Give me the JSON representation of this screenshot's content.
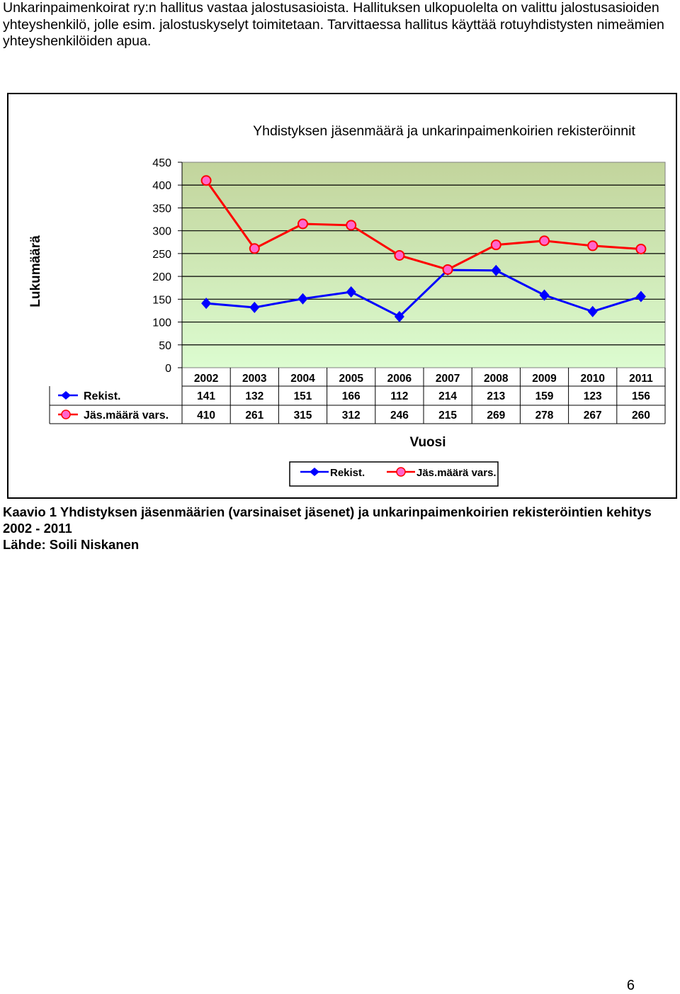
{
  "intro_text": "Unkarinpaimenkoirat ry:n hallitus vastaa jalostusasioista. Hallituksen ulkopuolelta on valittu jalostusasioiden yhteyshenkilö, jolle esim. jalostuskyselyt toimitetaan. Tarvittaessa hallitus käyttää rotuyhdistysten nimeämien yhteyshenkilöiden apua.",
  "chart_data": {
    "type": "line",
    "title": "Yhdistyksen jäsenmäärä ja unkarinpaimenkoirien rekisteröinnit",
    "xlabel": "Vuosi",
    "ylabel": "Lukumäärä",
    "categories": [
      "2002",
      "2003",
      "2004",
      "2005",
      "2006",
      "2007",
      "2008",
      "2009",
      "2010",
      "2011"
    ],
    "y_ticks": [
      "0",
      "50",
      "100",
      "150",
      "200",
      "250",
      "300",
      "350",
      "400",
      "450"
    ],
    "ylim": [
      0,
      450
    ],
    "grid": "horizontal",
    "legend_position": "bottom",
    "data_table": true,
    "series": [
      {
        "name": "Rekist.",
        "values": [
          141,
          132,
          151,
          166,
          112,
          214,
          213,
          159,
          123,
          156
        ],
        "color": "#0000ff",
        "marker": "diamond"
      },
      {
        "name": "Jäs.määrä vars.",
        "values": [
          410,
          261,
          315,
          312,
          246,
          215,
          269,
          278,
          267,
          260
        ],
        "color": "#ff0000",
        "marker": "circle",
        "marker_fill": "#ff66cc"
      }
    ]
  },
  "caption": {
    "text": "Kaavio 1 Yhdistyksen jäsenmäärien (varsinaiset jäsenet) ja unkarinpaimenkoirien rekisteröintien kehitys 2002 - 2011",
    "source": "Lähde: Soili Niskanen"
  },
  "page_number": "6"
}
